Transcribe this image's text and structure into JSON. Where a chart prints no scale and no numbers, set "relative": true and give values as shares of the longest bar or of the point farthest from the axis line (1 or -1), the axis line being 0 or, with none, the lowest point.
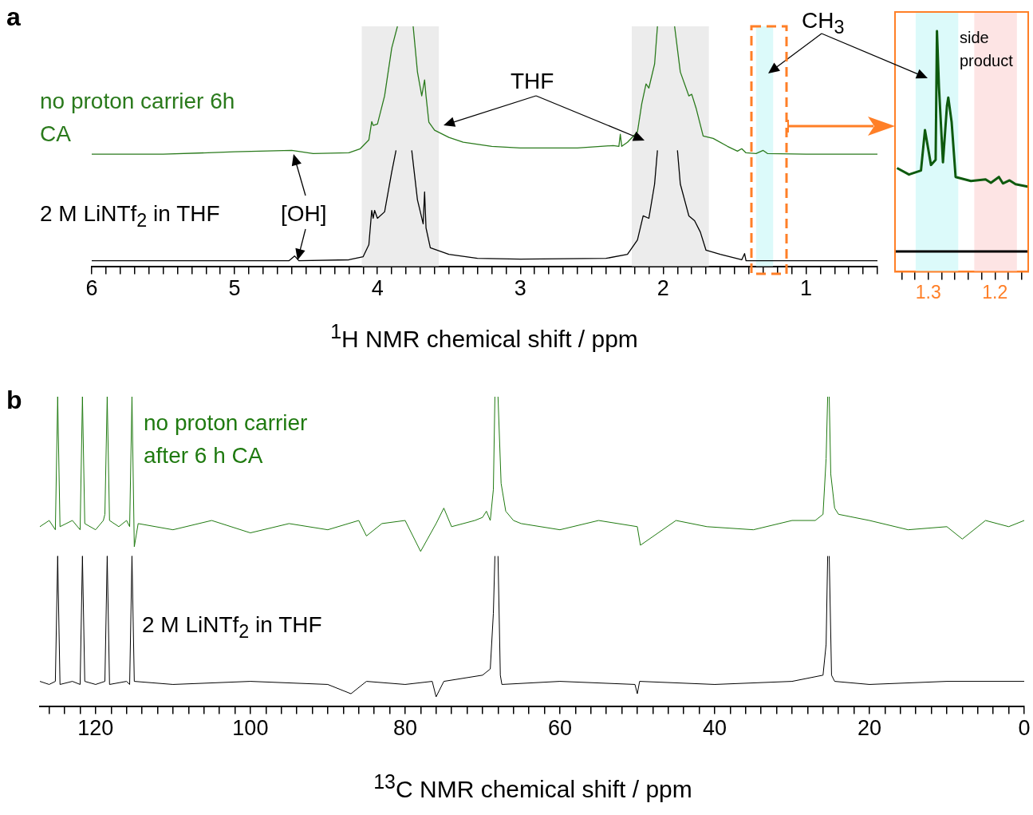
{
  "chart_data": [
    {
      "type": "line",
      "title": "a",
      "xlabel": "$^{1}$H NMR chemical shift / ppm",
      "relative": true,
      "grid": false,
      "legend": false,
      "marker": "none",
      "xlim": [
        6,
        0.5
      ],
      "xticks": [
        6,
        {
          "value": 5.9,
          "label": null
        },
        {
          "value": 5.8,
          "label": null
        },
        {
          "value": 5.7,
          "label": null
        },
        {
          "value": 5.6,
          "label": null
        },
        {
          "value": 5.5,
          "label": null
        },
        {
          "value": 5.4,
          "label": null
        },
        {
          "value": 5.3,
          "label": null
        },
        {
          "value": 5.2,
          "label": null
        },
        {
          "value": 5.1,
          "label": null
        },
        5,
        {
          "value": 4.9,
          "label": null
        },
        {
          "value": 4.8,
          "label": null
        },
        {
          "value": 4.7,
          "label": null
        },
        {
          "value": 4.6,
          "label": null
        },
        {
          "value": 4.5,
          "label": null
        },
        {
          "value": 4.4,
          "label": null
        },
        {
          "value": 4.3,
          "label": null
        },
        {
          "value": 4.2,
          "label": null
        },
        {
          "value": 4.1,
          "label": null
        },
        4,
        {
          "value": 3.9,
          "label": null
        },
        {
          "value": 3.8,
          "label": null
        },
        {
          "value": 3.7,
          "label": null
        },
        {
          "value": 3.6,
          "label": null
        },
        {
          "value": 3.5,
          "label": null
        },
        {
          "value": 3.4,
          "label": null
        },
        {
          "value": 3.3,
          "label": null
        },
        {
          "value": 3.2,
          "label": null
        },
        {
          "value": 3.1,
          "label": null
        },
        3,
        {
          "value": 2.9,
          "label": null
        },
        {
          "value": 2.8,
          "label": null
        },
        {
          "value": 2.7,
          "label": null
        },
        {
          "value": 2.6,
          "label": null
        },
        {
          "value": 2.5,
          "label": null
        },
        {
          "value": 2.4,
          "label": null
        },
        {
          "value": 2.3,
          "label": null
        },
        {
          "value": 2.2,
          "label": null
        },
        {
          "value": 2.1,
          "label": null
        },
        2,
        {
          "value": 1.9,
          "label": null
        },
        {
          "value": 1.8,
          "label": null
        },
        {
          "value": 1.7,
          "label": null
        },
        {
          "value": 1.6,
          "label": null
        },
        {
          "value": 1.5,
          "label": null
        },
        {
          "value": 1.4,
          "label": null
        },
        {
          "value": 1.3,
          "label": null
        },
        {
          "value": 1.2,
          "label": null
        },
        {
          "value": 1.1,
          "label": null
        },
        1,
        {
          "value": 0.9,
          "label": null
        },
        {
          "value": 0.8,
          "label": null
        },
        {
          "value": 0.7,
          "label": null
        },
        {
          "value": 0.6,
          "label": null
        },
        {
          "value": 0.5,
          "label": null
        }
      ],
      "bands": [
        {
          "axis": "x",
          "from": 4.11,
          "to": 3.57,
          "color": "#ececec"
        },
        {
          "axis": "x",
          "from": 2.22,
          "to": 1.68,
          "color": "#ececec"
        },
        {
          "axis": "x",
          "from": 1.35,
          "to": 1.23,
          "color": "#dcfafa"
        }
      ],
      "annotations": [
        "THF",
        "[OH]",
        "CH$_{3}$"
      ],
      "series": [
        {
          "name": "no proton carrier 6h CA",
          "color": "#2a7a1c",
          "x": [
            6,
            5.5,
            5,
            4.6,
            4.45,
            4.2,
            4.12,
            4.06,
            4.04,
            4.03,
            4.0,
            3.95,
            3.9,
            3.86,
            3.8,
            3.75,
            3.72,
            3.69,
            3.67,
            3.66,
            3.64,
            3.6,
            3.5,
            3.4,
            3.2,
            3.0,
            2.6,
            2.35,
            2.31,
            2.3,
            2.29,
            2.25,
            2.18,
            2.15,
            2.12,
            2.1,
            2.06,
            2.04,
            1.98,
            1.92,
            1.88,
            1.82,
            1.8,
            1.77,
            1.72,
            1.65,
            1.55,
            1.48,
            1.45,
            1.42,
            1.35,
            1.3,
            1.27,
            1.0,
            0.5
          ],
          "values": [
            0.467,
            0.467,
            0.477,
            0.483,
            0.47,
            0.473,
            0.49,
            0.527,
            0.603,
            0.587,
            0.593,
            0.71,
            0.91,
            1,
            null,
            1,
            0.81,
            0.71,
            0.777,
            0.71,
            0.6,
            0.567,
            0.537,
            0.517,
            0.5,
            0.493,
            0.493,
            0.503,
            0.5,
            0.55,
            0.5,
            0.517,
            0.56,
            0.677,
            0.76,
            0.743,
            0.843,
            1,
            null,
            1,
            0.81,
            0.71,
            0.717,
            0.66,
            0.543,
            0.533,
            0.5,
            0.48,
            0.49,
            0.473,
            0.47,
            0.483,
            0.47,
            0.467,
            0.467
          ]
        },
        {
          "name": "2 M LiNTf$_{2}$ in THF",
          "color": "#000000",
          "x": [
            6,
            4.62,
            4.58,
            4.55,
            4.2,
            4.1,
            4.06,
            4.04,
            4.03,
            4.02,
            4.0,
            3.95,
            3.9,
            3.87,
            3.8,
            3.76,
            3.72,
            3.68,
            3.67,
            3.66,
            3.63,
            3.5,
            3.3,
            3.0,
            2.4,
            2.25,
            2.18,
            2.14,
            2.1,
            2.06,
            2.04,
            1.98,
            1.9,
            1.88,
            1.82,
            1.78,
            1.74,
            1.7,
            1.6,
            1.45,
            1.43,
            1.42,
            0.5
          ],
          "values": [
            0.023,
            0.023,
            0.043,
            0.023,
            0.027,
            0.04,
            0.09,
            0.233,
            0.2,
            0.233,
            0.2,
            0.227,
            0.393,
            0.483,
            null,
            0.483,
            0.277,
            0.177,
            0.31,
            0.16,
            0.077,
            0.05,
            0.033,
            0.03,
            0.033,
            0.05,
            0.11,
            0.21,
            0.2,
            0.343,
            0.483,
            null,
            0.483,
            0.343,
            0.21,
            0.19,
            0.143,
            0.067,
            0.05,
            0.027,
            0.053,
            0.023,
            0.023
          ]
        }
      ]
    },
    {
      "type": "line",
      "relative": true,
      "grid": false,
      "legend": false,
      "marker": "none",
      "xlim": [
        1.35,
        1.15
      ],
      "xticks": [
        {
          "value": 1.34,
          "label": null
        },
        {
          "value": 1.32,
          "label": null
        },
        1.3,
        {
          "value": 1.28,
          "label": null
        },
        {
          "value": 1.26,
          "label": null
        },
        {
          "value": 1.24,
          "label": null
        },
        {
          "value": 1.22,
          "label": null
        },
        1.2,
        {
          "value": 1.18,
          "label": null
        },
        {
          "value": 1.16,
          "label": null
        }
      ],
      "bands": [
        {
          "axis": "x",
          "from": 1.319,
          "to": 1.255,
          "color": "#dcfafa"
        },
        {
          "axis": "x",
          "from": 1.231,
          "to": 1.167,
          "color": "#fde4e4"
        }
      ],
      "annotations": [
        "side product"
      ],
      "series": [
        {
          "color": "#0e5a0e",
          "x": [
            1.347,
            1.329,
            1.311,
            1.305,
            1.296,
            1.289,
            1.287,
            1.284,
            1.278,
            1.272,
            1.27,
            1.265,
            1.259,
            1.236,
            1.214,
            1.206,
            1.194,
            1.188,
            1.178,
            1.169,
            1.151
          ],
          "values": [
            0.431,
            0.404,
            0.421,
            0.589,
            0.444,
            0.465,
            1,
            0.768,
            0.455,
            0.69,
            0.724,
            0.623,
            0.394,
            0.377,
            0.384,
            0.37,
            0.394,
            0.367,
            0.38,
            0.364,
            0.354
          ]
        },
        {
          "color": "#000000",
          "x": [
            1.35,
            1.15
          ],
          "values": [
            0.084,
            0.084
          ]
        }
      ]
    },
    {
      "type": "line",
      "title": "b",
      "xlabel": "$^{13}$C NMR chemical shift / ppm",
      "relative": true,
      "grid": false,
      "legend": false,
      "marker": "none",
      "xlim": [
        127.2,
        0
      ],
      "xticks": [
        {
          "value": 126,
          "label": null
        },
        {
          "value": 124,
          "label": null
        },
        {
          "value": 122,
          "label": null
        },
        120,
        {
          "value": 118,
          "label": null
        },
        {
          "value": 116,
          "label": null
        },
        {
          "value": 114,
          "label": null
        },
        {
          "value": 112,
          "label": null
        },
        {
          "value": 110,
          "label": null
        },
        {
          "value": 108,
          "label": null
        },
        {
          "value": 106,
          "label": null
        },
        {
          "value": 104,
          "label": null
        },
        {
          "value": 102,
          "label": null
        },
        100,
        {
          "value": 98,
          "label": null
        },
        {
          "value": 96,
          "label": null
        },
        {
          "value": 94,
          "label": null
        },
        {
          "value": 92,
          "label": null
        },
        {
          "value": 90,
          "label": null
        },
        {
          "value": 88,
          "label": null
        },
        {
          "value": 86,
          "label": null
        },
        {
          "value": 84,
          "label": null
        },
        {
          "value": 82,
          "label": null
        },
        80,
        {
          "value": 78,
          "label": null
        },
        {
          "value": 76,
          "label": null
        },
        {
          "value": 74,
          "label": null
        },
        {
          "value": 72,
          "label": null
        },
        {
          "value": 70,
          "label": null
        },
        {
          "value": 68,
          "label": null
        },
        {
          "value": 66,
          "label": null
        },
        {
          "value": 64,
          "label": null
        },
        {
          "value": 62,
          "label": null
        },
        60,
        {
          "value": 58,
          "label": null
        },
        {
          "value": 56,
          "label": null
        },
        {
          "value": 54,
          "label": null
        },
        {
          "value": 52,
          "label": null
        },
        {
          "value": 50,
          "label": null
        },
        {
          "value": 48,
          "label": null
        },
        {
          "value": 46,
          "label": null
        },
        {
          "value": 44,
          "label": null
        },
        {
          "value": 42,
          "label": null
        },
        40,
        {
          "value": 38,
          "label": null
        },
        {
          "value": 36,
          "label": null
        },
        {
          "value": 34,
          "label": null
        },
        {
          "value": 32,
          "label": null
        },
        {
          "value": 30,
          "label": null
        },
        {
          "value": 28,
          "label": null
        },
        {
          "value": 26,
          "label": null
        },
        {
          "value": 24,
          "label": null
        },
        {
          "value": 22,
          "label": null
        },
        20,
        {
          "value": 18,
          "label": null
        },
        {
          "value": 16,
          "label": null
        },
        {
          "value": 14,
          "label": null
        },
        {
          "value": 12,
          "label": null
        },
        {
          "value": 10,
          "label": null
        },
        {
          "value": 8,
          "label": null
        },
        {
          "value": 6,
          "label": null
        },
        {
          "value": 4,
          "label": null
        },
        {
          "value": 2,
          "label": null
        },
        0
      ],
      "series": [
        {
          "name": "no proton carrier after 6 h CA",
          "color": "#1f7a10",
          "x": [
            127.2,
            126,
            125.2,
            124.9,
            124.6,
            123,
            122,
            121.7,
            121.4,
            120,
            119,
            118.8,
            118.5,
            118.2,
            117,
            116,
            115.6,
            115.3,
            115,
            114.5,
            110,
            105,
            100,
            95,
            90,
            86,
            85,
            83,
            80,
            78,
            76,
            75,
            74,
            71,
            70,
            69.5,
            69,
            68.6,
            68.4,
            68.2,
            68,
            67.6,
            67,
            66,
            65,
            60,
            55,
            50,
            49.6,
            45,
            41,
            35,
            30,
            27,
            26,
            25.6,
            25.4,
            25.3,
            25.2,
            25,
            24.5,
            24,
            20,
            15,
            10,
            8,
            5,
            2,
            0
          ],
          "values": [
            0.58,
            0.6,
            0.57,
            1,
            0.58,
            0.6,
            0.57,
            1,
            0.59,
            0.57,
            0.6,
            0.62,
            1,
            0.6,
            0.58,
            0.6,
            0.58,
            1,
            0.515,
            0.59,
            0.57,
            0.6,
            0.56,
            0.59,
            0.57,
            0.6,
            0.55,
            0.59,
            0.6,
            0.5,
            0.59,
            0.64,
            0.58,
            0.6,
            0.61,
            0.63,
            0.6,
            0.7,
            1,
            null,
            1,
            0.72,
            0.63,
            0.6,
            0.59,
            0.57,
            0.6,
            0.58,
            0.52,
            0.6,
            0.58,
            0.57,
            0.6,
            0.6,
            0.62,
            0.8,
            1,
            null,
            1,
            0.75,
            0.64,
            0.62,
            0.6,
            0.57,
            0.58,
            0.54,
            0.6,
            0.58,
            0.6
          ]
        },
        {
          "name": "2 M LiNTf$_{2}$ in THF",
          "color": "#000000",
          "x": [
            127.2,
            126,
            125.2,
            124.9,
            124.6,
            123,
            122,
            121.7,
            121.4,
            120,
            118.8,
            118.5,
            118.2,
            116,
            115.6,
            115.3,
            115,
            110,
            100,
            90,
            87,
            85,
            80,
            76.5,
            76,
            75,
            70,
            69,
            68.6,
            68.4,
            68.2,
            68,
            67.7,
            67.5,
            60,
            50.3,
            50,
            49.7,
            40,
            30,
            26,
            25.6,
            25.4,
            25.3,
            25.2,
            24.9,
            24.5,
            20,
            10,
            0
          ],
          "values": [
            0.08,
            0.07,
            0.08,
            0.485,
            0.07,
            0.08,
            0.07,
            0.485,
            0.08,
            0.07,
            0.08,
            0.485,
            0.07,
            0.08,
            0.07,
            0.485,
            0.08,
            0.07,
            0.08,
            0.07,
            0.04,
            0.08,
            0.07,
            0.08,
            0.03,
            0.08,
            0.1,
            0.12,
            0.3,
            0.485,
            null,
            0.485,
            0.1,
            0.07,
            0.08,
            0.07,
            0.04,
            0.08,
            0.07,
            0.08,
            0.1,
            0.2,
            0.485,
            null,
            0.485,
            0.1,
            0.08,
            0.07,
            0.08,
            0.08
          ]
        }
      ]
    }
  ]
}
